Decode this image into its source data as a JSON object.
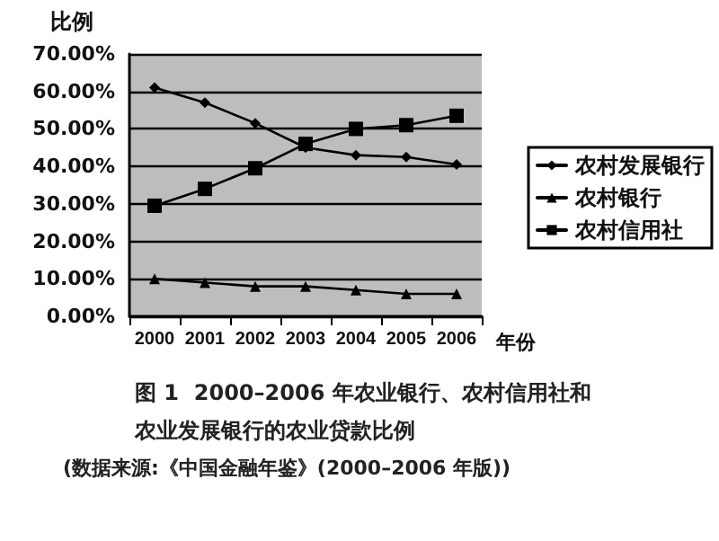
{
  "chart_data": {
    "type": "line",
    "title": "图 1  2000–2006 年农业银行、农村信用社和农业发展银行的农业贷款比例",
    "annotations": [
      "(数据来源:《中国金融年鉴》(2000–2006 年版))"
    ],
    "xlabel": "年份",
    "ylabel": "比例",
    "categories": [
      "2000",
      "2001",
      "2002",
      "2003",
      "2004",
      "2005",
      "2006"
    ],
    "series": [
      {
        "name": "农村发展银行",
        "color": "#000000",
        "marker": "diamond",
        "values": [
          61,
          57,
          51.5,
          45,
          43,
          42.5,
          40.5
        ]
      },
      {
        "name": "农村银行",
        "color": "#000000",
        "marker": "triangle",
        "values": [
          10,
          9,
          8,
          8,
          7,
          6,
          6
        ]
      },
      {
        "name": "农村信用社",
        "color": "#000000",
        "marker": "square",
        "values": [
          29.5,
          34,
          39.5,
          46,
          50,
          51,
          53.5
        ]
      }
    ],
    "ylim": [
      0,
      70
    ],
    "yticks": [
      {
        "value": 0,
        "label": "0.00%"
      },
      {
        "value": 10,
        "label": "10.00%"
      },
      {
        "value": 20,
        "label": "20.00%"
      },
      {
        "value": 30,
        "label": "30.00%"
      },
      {
        "value": 40,
        "label": "40.00%"
      },
      {
        "value": 50,
        "label": "50.00%"
      },
      {
        "value": 60,
        "label": "60.00%"
      },
      {
        "value": 70,
        "label": "70.00%"
      }
    ],
    "grid": "y",
    "legend": "right",
    "line_style": "solid"
  }
}
